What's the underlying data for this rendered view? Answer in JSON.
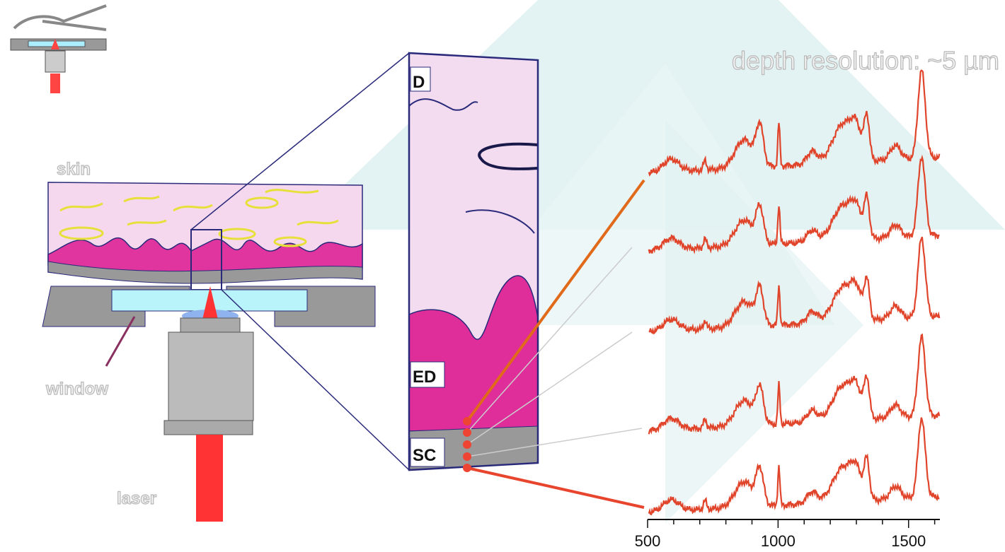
{
  "title": "depth resolution: ~5 µm",
  "labels": {
    "skin": "skin",
    "window": "window",
    "laser": "laser"
  },
  "layers": {
    "d": "D",
    "ed": "ED",
    "sc": "SC"
  },
  "axis": {
    "xlim": [
      500,
      1620
    ],
    "ticks": [
      500,
      1000,
      1500
    ],
    "minor_ticks": [
      600,
      700,
      800,
      900,
      1100,
      1200,
      1300,
      1400,
      1600
    ]
  }
}
